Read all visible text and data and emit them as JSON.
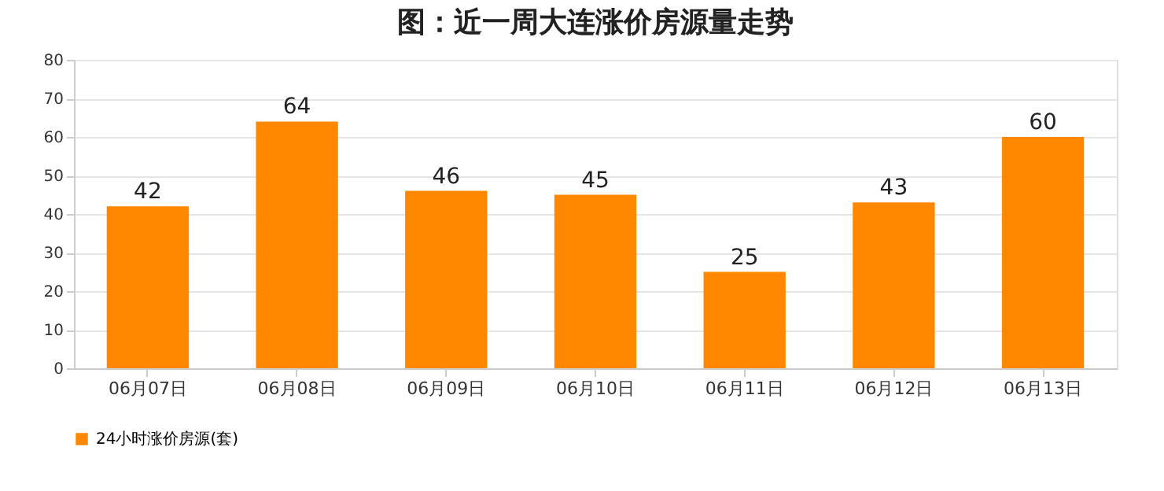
{
  "chart_data": {
    "type": "bar",
    "title": "图：近一周大连涨价房源量走势",
    "categories": [
      "06月07日",
      "06月08日",
      "06月09日",
      "06月10日",
      "06月11日",
      "06月12日",
      "06月13日"
    ],
    "series": [
      {
        "name": "24小时涨价房源(套)",
        "color": "#ff8800",
        "values": [
          42,
          64,
          46,
          45,
          25,
          43,
          60
        ]
      }
    ],
    "ylim": [
      0,
      80
    ],
    "yticks": [
      0,
      10,
      20,
      30,
      40,
      50,
      60,
      70,
      80
    ],
    "grid": "y",
    "data_labels": true,
    "legend": "bottom"
  }
}
